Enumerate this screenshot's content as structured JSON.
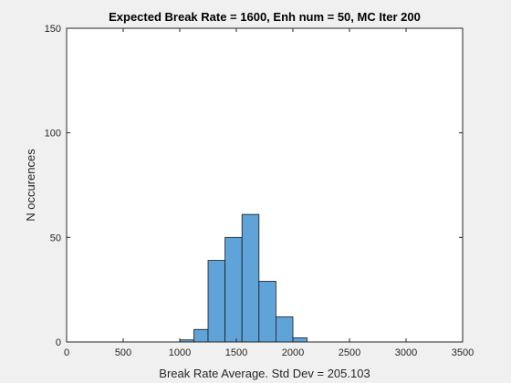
{
  "chart_data": {
    "type": "bar",
    "title": "Expected Break Rate = 1600, Enh num = 50, MC Iter 200",
    "xlabel": "Break Rate Average. Std Dev = 205.103",
    "ylabel": "N occurences",
    "xlim": [
      0,
      3500
    ],
    "ylim": [
      0,
      150
    ],
    "xticks": [
      0,
      500,
      1000,
      1500,
      2000,
      2500,
      3000,
      3500
    ],
    "yticks": [
      0,
      50,
      100,
      150
    ],
    "bin_edges": [
      1000,
      1125,
      1250,
      1400,
      1550,
      1700,
      1850,
      2000,
      2125,
      2250
    ],
    "values": [
      1,
      6,
      39,
      50,
      61,
      29,
      12,
      2,
      0
    ],
    "bar_color": "#5fa3d9",
    "edge_color": "#1a1a1a",
    "grid": false,
    "box": true
  }
}
